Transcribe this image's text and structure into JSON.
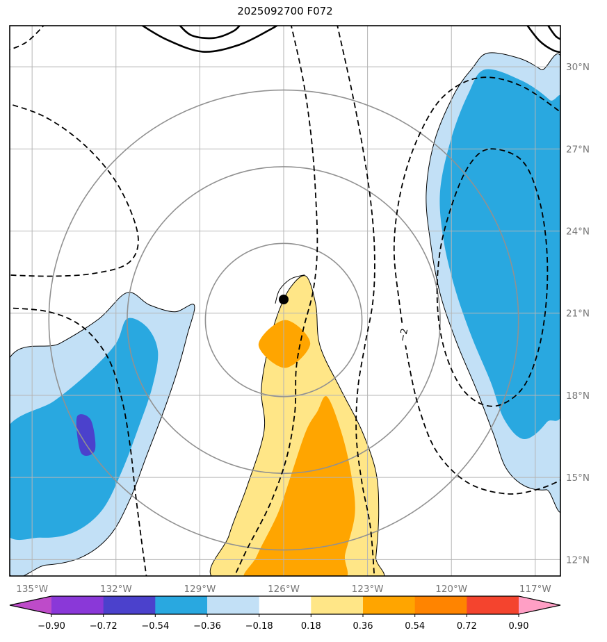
{
  "chart_data": {
    "type": "contour-map",
    "title": "2025092700 F072",
    "axes": {
      "lon_range": [
        -135.8,
        -116.1
      ],
      "lat_range": [
        11.4,
        31.5
      ],
      "grid_color": "#b5b5b5",
      "tick_label_color": "#767676",
      "xticks": [
        {
          "value": -135,
          "label": "135°W"
        },
        {
          "value": -132,
          "label": "132°W"
        },
        {
          "value": -129,
          "label": "129°W"
        },
        {
          "value": -126,
          "label": "126°W"
        },
        {
          "value": -123,
          "label": "123°W"
        },
        {
          "value": -120,
          "label": "120°W"
        },
        {
          "value": -117,
          "label": "117°W"
        }
      ],
      "yticks": [
        {
          "value": 30,
          "label": "30°N"
        },
        {
          "value": 27,
          "label": "27°N"
        },
        {
          "value": 24,
          "label": "24°N"
        },
        {
          "value": 21,
          "label": "21°N"
        },
        {
          "value": 18,
          "label": "18°N"
        },
        {
          "value": 15,
          "label": "15°N"
        },
        {
          "value": 12,
          "label": "12°N"
        }
      ]
    },
    "map": {
      "center_marker": {
        "lon": -126.0,
        "lat": 21.5,
        "color": "#000000"
      },
      "range_rings": {
        "center": [
          -126.0,
          20.75
        ],
        "radii_deg": [
          2.8,
          5.6,
          8.4
        ],
        "color": "#919191"
      },
      "contour_label": {
        "text": "−2",
        "lon": -121.7,
        "lat": 20.2,
        "rotation": -78
      },
      "filled_regions": [
        {
          "name": "upper-right-light-blue",
          "value_range": [
            -0.36,
            -0.18
          ],
          "fill": "#C2E0F6",
          "outline": true,
          "points": [
            [
              -118.7,
              30.5
            ],
            [
              -117.6,
              30.32
            ],
            [
              -116.8,
              29.9
            ],
            [
              -115.9,
              29.2
            ],
            [
              -115.9,
              14.9
            ],
            [
              -116.6,
              14.55
            ],
            [
              -117.4,
              14.7
            ],
            [
              -118.05,
              15.35
            ],
            [
              -118.5,
              16.6
            ],
            [
              -119.1,
              18.2
            ],
            [
              -119.8,
              19.9
            ],
            [
              -120.4,
              21.7
            ],
            [
              -120.75,
              23.6
            ],
            [
              -120.9,
              25.4
            ],
            [
              -120.6,
              27.3
            ],
            [
              -119.9,
              29.0
            ],
            [
              -119.25,
              29.95
            ]
          ]
        },
        {
          "name": "upper-right-cyan",
          "value_range": [
            -0.54,
            -0.36
          ],
          "fill": "#29A8E0",
          "outline": false,
          "points": [
            [
              -118.8,
              29.9
            ],
            [
              -117.5,
              29.5
            ],
            [
              -116.5,
              28.8
            ],
            [
              -115.9,
              28.0
            ],
            [
              -115.9,
              18.3
            ],
            [
              -116.6,
              17.0
            ],
            [
              -117.4,
              16.4
            ],
            [
              -118.1,
              17.1
            ],
            [
              -118.6,
              18.5
            ],
            [
              -119.3,
              20.2
            ],
            [
              -119.9,
              22.0
            ],
            [
              -120.3,
              23.8
            ],
            [
              -120.4,
              25.5
            ],
            [
              -120.0,
              27.4
            ],
            [
              -119.4,
              29.0
            ]
          ]
        },
        {
          "name": "lower-left-light-blue",
          "value_range": [
            -0.36,
            -0.18
          ],
          "fill": "#C2E0F6",
          "outline": true,
          "points": [
            [
              -136.0,
              18.9
            ],
            [
              -134.0,
              19.9
            ],
            [
              -132.6,
              20.8
            ],
            [
              -131.6,
              21.75
            ],
            [
              -130.8,
              21.3
            ],
            [
              -129.9,
              21.05
            ],
            [
              -129.2,
              21.3
            ],
            [
              -129.45,
              20.2
            ],
            [
              -129.8,
              18.9
            ],
            [
              -130.3,
              17.4
            ],
            [
              -130.9,
              15.8
            ],
            [
              -131.5,
              14.2
            ],
            [
              -132.2,
              12.9
            ],
            [
              -133.2,
              12.1
            ],
            [
              -134.5,
              11.8
            ],
            [
              -136.0,
              11.9
            ]
          ]
        },
        {
          "name": "lower-left-cyan",
          "value_range": [
            -0.54,
            -0.36
          ],
          "fill": "#29A8E0",
          "outline": false,
          "points": [
            [
              -136.0,
              16.6
            ],
            [
              -134.2,
              17.8
            ],
            [
              -132.9,
              18.9
            ],
            [
              -132.0,
              19.9
            ],
            [
              -131.6,
              20.8
            ],
            [
              -130.9,
              20.5
            ],
            [
              -130.5,
              19.6
            ],
            [
              -130.7,
              18.3
            ],
            [
              -131.2,
              16.8
            ],
            [
              -131.8,
              15.2
            ],
            [
              -132.5,
              13.8
            ],
            [
              -133.5,
              13.0
            ],
            [
              -134.7,
              12.8
            ],
            [
              -136.0,
              13.1
            ]
          ]
        },
        {
          "name": "lower-left-indigo-patch",
          "value_range": [
            -0.72,
            -0.54
          ],
          "fill": "#4B41CC",
          "outline": false,
          "points": [
            [
              -133.4,
              17.2
            ],
            [
              -132.9,
              17.1
            ],
            [
              -132.75,
              16.0
            ],
            [
              -133.25,
              15.9
            ]
          ]
        },
        {
          "name": "central-yellow",
          "value_range": [
            0.18,
            0.36
          ],
          "fill": "#FFE687",
          "outline": true,
          "points": [
            [
              -125.2,
              22.35
            ],
            [
              -124.85,
              21.3
            ],
            [
              -124.7,
              19.8
            ],
            [
              -123.95,
              18.2
            ],
            [
              -123.2,
              16.7
            ],
            [
              -122.7,
              15.2
            ],
            [
              -122.6,
              13.7
            ],
            [
              -122.7,
              12.1
            ],
            [
              -122.85,
              11.2
            ],
            [
              -128.3,
              11.2
            ],
            [
              -127.95,
              12.9
            ],
            [
              -127.3,
              14.7
            ],
            [
              -126.7,
              16.7
            ],
            [
              -126.8,
              18.2
            ],
            [
              -126.55,
              19.75
            ],
            [
              -126.2,
              21.0
            ],
            [
              -125.75,
              21.95
            ]
          ]
        },
        {
          "name": "central-orange",
          "value_range": [
            0.36,
            0.54
          ],
          "fill": "#FFA500",
          "outline": false,
          "points": [
            [
              -124.45,
              17.95
            ],
            [
              -123.95,
              16.7
            ],
            [
              -123.6,
              15.2
            ],
            [
              -123.45,
              13.7
            ],
            [
              -123.8,
              12.2
            ],
            [
              -124.0,
              11.2
            ],
            [
              -127.25,
              11.2
            ],
            [
              -126.95,
              12.15
            ],
            [
              -126.2,
              13.7
            ],
            [
              -125.7,
              15.2
            ],
            [
              -125.2,
              16.7
            ],
            [
              -124.8,
              17.4
            ]
          ]
        },
        {
          "name": "orange-diamond",
          "value_range": [
            0.36,
            0.54
          ],
          "fill": "#FFA500",
          "outline": false,
          "points": [
            [
              -125.95,
              20.75
            ],
            [
              -125.05,
              19.9
            ],
            [
              -125.95,
              19.0
            ],
            [
              -126.9,
              19.85
            ]
          ]
        }
      ],
      "contours_dashed": [
        {
          "name": "dashed-central-left",
          "closed": false,
          "points": [
            [
              -125.75,
              31.6
            ],
            [
              -125.3,
              29.5
            ],
            [
              -125.0,
              27.3
            ],
            [
              -124.85,
              25.2
            ],
            [
              -124.8,
              23.3
            ],
            [
              -124.95,
              21.8
            ],
            [
              -125.3,
              20.4
            ],
            [
              -125.55,
              19.0
            ],
            [
              -125.6,
              17.4
            ],
            [
              -125.9,
              15.7
            ],
            [
              -126.5,
              14.0
            ],
            [
              -127.3,
              12.4
            ],
            [
              -127.8,
              11.3
            ]
          ]
        },
        {
          "name": "dashed-central-right",
          "closed": false,
          "points": [
            [
              -124.1,
              31.6
            ],
            [
              -123.6,
              29.3
            ],
            [
              -123.2,
              27.2
            ],
            [
              -122.9,
              25.2
            ],
            [
              -122.75,
              23.3
            ],
            [
              -122.8,
              21.5
            ],
            [
              -123.1,
              19.8
            ],
            [
              -123.35,
              18.2
            ],
            [
              -123.4,
              16.5
            ],
            [
              -123.2,
              14.8
            ],
            [
              -122.9,
              13.2
            ],
            [
              -122.75,
              11.3
            ]
          ]
        },
        {
          "name": "dashed-right-outer",
          "closed": false,
          "points": [
            [
              -115.9,
              28.2
            ],
            [
              -117.5,
              29.3
            ],
            [
              -119.0,
              29.6
            ],
            [
              -120.3,
              28.9
            ],
            [
              -121.2,
              27.4
            ],
            [
              -121.8,
              25.5
            ],
            [
              -122.05,
              23.4
            ],
            [
              -121.85,
              21.3
            ],
            [
              -121.55,
              19.3
            ],
            [
              -121.15,
              17.5
            ],
            [
              -120.5,
              15.9
            ],
            [
              -119.4,
              14.8
            ],
            [
              -118.0,
              14.4
            ],
            [
              -116.8,
              14.6
            ],
            [
              -115.9,
              15.0
            ]
          ]
        },
        {
          "name": "dashed-right-inner",
          "closed": true,
          "points": [
            [
              -118.6,
              27.0
            ],
            [
              -117.5,
              26.6
            ],
            [
              -116.9,
              25.3
            ],
            [
              -116.6,
              23.5
            ],
            [
              -116.6,
              21.5
            ],
            [
              -116.9,
              19.6
            ],
            [
              -117.5,
              18.2
            ],
            [
              -118.5,
              17.6
            ],
            [
              -119.5,
              18.1
            ],
            [
              -120.2,
              19.5
            ],
            [
              -120.5,
              21.3
            ],
            [
              -120.4,
              23.3
            ],
            [
              -119.9,
              25.2
            ],
            [
              -119.3,
              26.5
            ]
          ]
        },
        {
          "name": "dashed-upper-left",
          "closed": false,
          "points": [
            [
              -136.0,
              28.7
            ],
            [
              -134.6,
              28.2
            ],
            [
              -133.3,
              27.3
            ],
            [
              -132.2,
              26.1
            ],
            [
              -131.5,
              24.8
            ],
            [
              -131.2,
              23.6
            ],
            [
              -131.6,
              22.8
            ],
            [
              -132.8,
              22.45
            ],
            [
              -134.3,
              22.35
            ],
            [
              -136.0,
              22.4
            ]
          ]
        },
        {
          "name": "dashed-lower-left",
          "closed": false,
          "points": [
            [
              -136.0,
              21.2
            ],
            [
              -134.4,
              21.05
            ],
            [
              -133.2,
              20.5
            ],
            [
              -132.3,
              19.4
            ],
            [
              -131.8,
              17.9
            ],
            [
              -131.5,
              16.2
            ],
            [
              -131.3,
              14.4
            ],
            [
              -131.1,
              12.8
            ],
            [
              -130.9,
              11.3
            ]
          ]
        },
        {
          "name": "dashed-top-left-corner",
          "closed": false,
          "points": [
            [
              -134.5,
              31.6
            ],
            [
              -135.2,
              30.9
            ],
            [
              -136.0,
              30.55
            ]
          ]
        }
      ],
      "contours_solid_bold": [
        {
          "name": "bold-top-outer",
          "points": [
            [
              -131.2,
              31.6
            ],
            [
              -130.2,
              31.0
            ],
            [
              -128.9,
              30.55
            ],
            [
              -127.6,
              30.8
            ],
            [
              -126.5,
              31.35
            ],
            [
              -126.1,
              31.6
            ]
          ]
        },
        {
          "name": "bold-top-inner",
          "points": [
            [
              -129.8,
              31.6
            ],
            [
              -129.3,
              31.15
            ],
            [
              -128.5,
              31.05
            ],
            [
              -127.8,
              31.3
            ],
            [
              -127.5,
              31.6
            ]
          ]
        },
        {
          "name": "bold-top-right",
          "points": [
            [
              -117.35,
              31.6
            ],
            [
              -116.85,
              30.95
            ],
            [
              -116.35,
              30.6
            ],
            [
              -115.9,
              30.5
            ]
          ]
        },
        {
          "name": "bold-top-right-corner",
          "points": [
            [
              -116.6,
              31.6
            ],
            [
              -116.25,
              31.1
            ],
            [
              -115.9,
              30.95
            ]
          ]
        }
      ],
      "contours_solid_thin": [
        {
          "name": "thin-spur-near-center",
          "points": [
            [
              -125.25,
              22.4
            ],
            [
              -125.75,
              22.25
            ],
            [
              -126.15,
              21.85
            ],
            [
              -126.3,
              21.35
            ]
          ]
        }
      ]
    },
    "colorbar": {
      "levels": [
        -0.9,
        -0.72,
        -0.54,
        -0.36,
        -0.18,
        0.18,
        0.36,
        0.54,
        0.72,
        0.9
      ],
      "tick_labels": [
        "−0.90",
        "−0.72",
        "−0.54",
        "−0.36",
        "−0.18",
        "0.18",
        "0.36",
        "0.54",
        "0.72",
        "0.90"
      ],
      "segment_colors": [
        "#8A38D8",
        "#4B41CC",
        "#29A8E0",
        "#C2E0F6",
        "#FFFFFF",
        "#FFE687",
        "#FFA500",
        "#FF8400",
        "#F4442E"
      ],
      "extend_colors": {
        "left": "#BE4BC9",
        "right": "#FF9FC5"
      }
    }
  }
}
